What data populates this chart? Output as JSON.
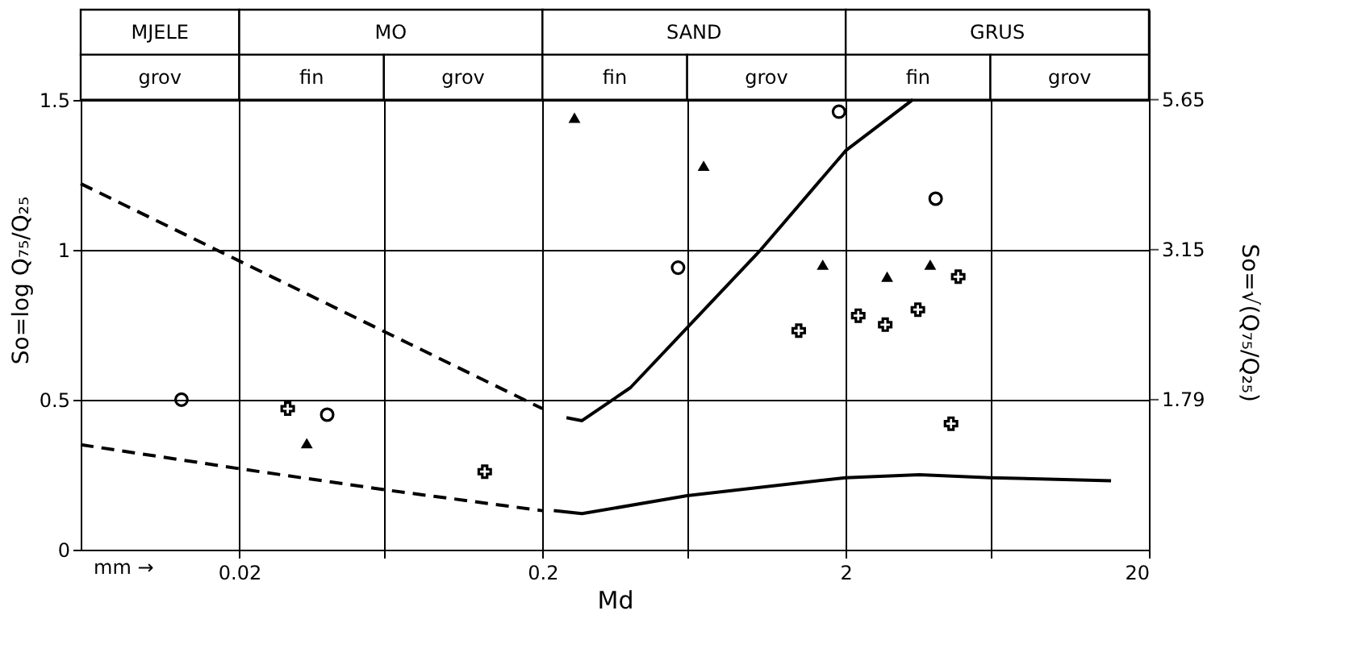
{
  "chart_data": {
    "type": "scatter",
    "xlabel": "Md",
    "ylabel": "So=log Q₇₅/Q₂₅",
    "y2label": "So=√(Q₇₅/Q₂₅)",
    "log": "x",
    "grid": true,
    "xlim": [
      0.006,
      20
    ],
    "xticks": [
      0.02,
      {
        "value": 0.06,
        "label": null
      },
      0.2,
      {
        "value": 0.6,
        "label": null
      },
      2,
      {
        "value": 6,
        "label": null
      },
      20
    ],
    "ylim": [
      0,
      1.8
    ],
    "yticks": [
      0,
      0.5,
      1,
      1.5
    ],
    "bands": [
      {
        "axis": "x",
        "from": 0.006,
        "to": 0.02,
        "label": "MJELE",
        "color": "#ffffff"
      },
      {
        "axis": "x",
        "from": 0.02,
        "to": 0.2,
        "label": "MO",
        "color": "#ffffff"
      },
      {
        "axis": "x",
        "from": 0.2,
        "to": 2,
        "label": "SAND",
        "color": "#ffffff"
      },
      {
        "axis": "x",
        "from": 2,
        "to": 20,
        "label": "GRUS",
        "color": "#ffffff"
      },
      {
        "axis": "x",
        "from": 0.006,
        "to": 0.02,
        "label": "grov",
        "color": "#ffffff"
      },
      {
        "axis": "x",
        "from": 0.02,
        "to": 0.06,
        "label": "fin",
        "color": "#ffffff"
      },
      {
        "axis": "x",
        "from": 0.06,
        "to": 0.2,
        "label": "grov",
        "color": "#ffffff"
      },
      {
        "axis": "x",
        "from": 0.2,
        "to": 0.6,
        "label": "fin",
        "color": "#ffffff"
      },
      {
        "axis": "x",
        "from": 0.6,
        "to": 2,
        "label": "grov",
        "color": "#ffffff"
      },
      {
        "axis": "x",
        "from": 2,
        "to": 6,
        "label": "fin",
        "color": "#ffffff"
      },
      {
        "axis": "x",
        "from": 6,
        "to": 20,
        "label": "grov",
        "color": "#ffffff"
      }
    ],
    "annotations": [
      "mm →",
      "1.79",
      "3.15",
      "5.65"
    ],
    "series": [
      {
        "type": "line",
        "line_style": "dashed",
        "color": "#000000",
        "x": [
          0.006,
          0.2
        ],
        "values": [
          1.22,
          0.47
        ]
      },
      {
        "type": "line",
        "line_style": "dashed",
        "color": "#000000",
        "x": [
          0.006,
          0.02,
          0.06,
          0.2
        ],
        "values": [
          0.35,
          0.27,
          0.2,
          0.13
        ]
      },
      {
        "type": "line",
        "line_style": "solid",
        "color": "#000000",
        "x": [
          0.24,
          0.27,
          0.39,
          0.6,
          1.05,
          2,
          3.33
        ],
        "values": [
          0.44,
          0.43,
          0.54,
          0.74,
          1.0,
          1.33,
          1.5
        ]
      },
      {
        "type": "line",
        "line_style": "solid",
        "color": "#000000",
        "x": [
          0.218,
          0.27,
          0.6,
          2,
          3.5,
          6,
          15
        ],
        "values": [
          0.13,
          0.12,
          0.18,
          0.24,
          0.25,
          0.24,
          0.23
        ]
      },
      {
        "marker": "circle",
        "color": "#000000",
        "x": [
          0.0129,
          0.039,
          0.56,
          1.9,
          3.96
        ],
        "values": [
          0.5,
          0.45,
          0.94,
          1.46,
          1.17
        ]
      },
      {
        "marker": "triangle",
        "color": "#000000",
        "x": [
          0.0334,
          0.255,
          0.68,
          1.68,
          2.74,
          3.8
        ],
        "values": [
          0.355,
          1.44,
          1.28,
          0.95,
          0.91,
          0.95
        ]
      },
      {
        "marker": "cross",
        "color": "#000000",
        "x": [
          0.0289,
          0.129,
          1.4,
          2.2,
          2.7,
          3.46,
          4.7,
          4.45
        ],
        "values": [
          0.47,
          0.26,
          0.73,
          0.78,
          0.75,
          0.8,
          0.91,
          0.42
        ]
      }
    ]
  }
}
